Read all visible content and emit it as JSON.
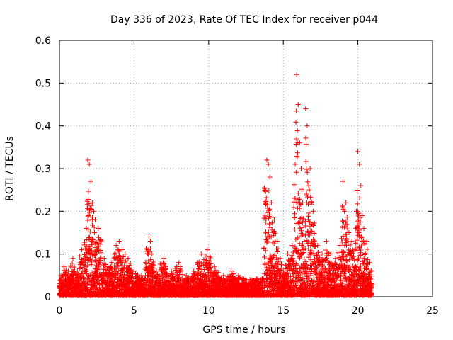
{
  "chart_data": {
    "type": "scatter",
    "title": "Day 336 of 2023, Rate Of TEC Index for receiver p044",
    "xlabel": "GPS time / hours",
    "ylabel": "ROTI / TECUs",
    "xlim": [
      0,
      25
    ],
    "ylim": [
      0,
      0.6
    ],
    "xticks": [
      "0",
      "5",
      "10",
      "15",
      "20",
      "25"
    ],
    "yticks": [
      "0",
      "0.1",
      "0.2",
      "0.3",
      "0.4",
      "0.5",
      "0.6"
    ],
    "grid": true,
    "marker": "plus",
    "marker_color": "#ff0000",
    "series": [
      {
        "x": [
          0.1,
          0.3,
          0.6,
          0.9,
          1.2,
          1.5,
          1.8,
          1.9,
          2.0,
          2.1,
          2.2,
          2.3,
          2.4,
          2.6,
          3.0,
          3.5,
          3.8,
          4.0,
          4.2,
          4.4,
          4.6,
          5.0,
          5.5,
          6.0,
          6.1,
          6.2,
          6.5,
          7.0,
          7.5,
          8.0,
          8.5,
          9.0,
          9.5,
          9.9,
          10.4,
          11.0,
          11.5,
          12.0,
          12.5,
          13.0,
          13.5,
          13.9,
          14.0,
          14.1,
          14.2,
          14.4,
          14.6,
          14.8,
          15.0,
          15.3,
          15.6,
          15.8,
          15.9,
          16.0,
          16.1,
          16.2,
          16.3,
          16.4,
          16.5,
          16.6,
          16.7,
          16.8,
          17.0,
          17.3,
          17.6,
          17.9,
          18.2,
          18.5,
          18.8,
          19.0,
          19.1,
          19.2,
          19.4,
          19.6,
          19.8,
          19.9,
          20.0,
          20.1,
          20.2,
          20.4,
          20.6,
          20.8
        ],
        "y": [
          0.05,
          0.07,
          0.06,
          0.09,
          0.06,
          0.11,
          0.16,
          0.32,
          0.31,
          0.27,
          0.22,
          0.2,
          0.18,
          0.16,
          0.09,
          0.08,
          0.12,
          0.13,
          0.11,
          0.1,
          0.09,
          0.06,
          0.05,
          0.14,
          0.13,
          0.1,
          0.06,
          0.09,
          0.06,
          0.08,
          0.05,
          0.06,
          0.1,
          0.11,
          0.07,
          0.05,
          0.06,
          0.05,
          0.04,
          0.03,
          0.04,
          0.32,
          0.31,
          0.28,
          0.22,
          0.18,
          0.13,
          0.09,
          0.06,
          0.1,
          0.12,
          0.31,
          0.52,
          0.45,
          0.36,
          0.3,
          0.22,
          0.13,
          0.44,
          0.4,
          0.26,
          0.3,
          0.2,
          0.12,
          0.1,
          0.13,
          0.1,
          0.09,
          0.12,
          0.27,
          0.2,
          0.22,
          0.15,
          0.13,
          0.11,
          0.2,
          0.34,
          0.31,
          0.26,
          0.16,
          0.13,
          0.08
        ]
      }
    ]
  }
}
